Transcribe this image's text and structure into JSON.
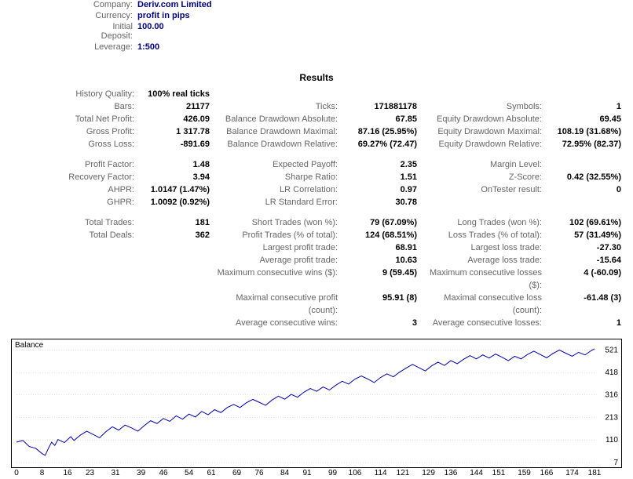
{
  "top": [
    {
      "label": "Company:",
      "value": "Deriv.com Limited"
    },
    {
      "label": "Currency:",
      "value": "profit in pips"
    },
    {
      "label": "Initial Deposit:",
      "value": "100.00"
    },
    {
      "label": "Leverage:",
      "value": "1:500"
    }
  ],
  "results_title": "Results",
  "stats_groups": [
    [
      {
        "a": [
          "History Quality:",
          "100% real ticks"
        ],
        "b": [
          "",
          ""
        ],
        "c": [
          "",
          ""
        ]
      },
      {
        "a": [
          "Bars:",
          "21177"
        ],
        "b": [
          "Ticks:",
          "171881178"
        ],
        "c": [
          "Symbols:",
          "1"
        ]
      },
      {
        "a": [
          "Total Net Profit:",
          "426.09"
        ],
        "b": [
          "Balance Drawdown Absolute:",
          "67.85"
        ],
        "c": [
          "Equity Drawdown Absolute:",
          "69.45"
        ]
      },
      {
        "a": [
          "Gross Profit:",
          "1 317.78"
        ],
        "b": [
          "Balance Drawdown Maximal:",
          "87.16 (25.95%)"
        ],
        "c": [
          "Equity Drawdown Maximal:",
          "108.19 (31.68%)"
        ]
      },
      {
        "a": [
          "Gross Loss:",
          "-891.69"
        ],
        "b": [
          "Balance Drawdown Relative:",
          "69.27% (72.47)"
        ],
        "c": [
          "Equity Drawdown Relative:",
          "72.95% (82.37)"
        ]
      }
    ],
    [
      {
        "a": [
          "Profit Factor:",
          "1.48"
        ],
        "b": [
          "Expected Payoff:",
          "2.35"
        ],
        "c": [
          "Margin Level:",
          ""
        ]
      },
      {
        "a": [
          "Recovery Factor:",
          "3.94"
        ],
        "b": [
          "Sharpe Ratio:",
          "1.51"
        ],
        "c": [
          "Z-Score:",
          "0.42 (32.55%)"
        ]
      },
      {
        "a": [
          "AHPR:",
          "1.0147 (1.47%)"
        ],
        "b": [
          "LR Correlation:",
          "0.97"
        ],
        "c": [
          "OnTester result:",
          "0"
        ]
      },
      {
        "a": [
          "GHPR:",
          "1.0092 (0.92%)"
        ],
        "b": [
          "LR Standard Error:",
          "30.78"
        ],
        "c": [
          "",
          ""
        ]
      }
    ],
    [
      {
        "a": [
          "Total Trades:",
          "181"
        ],
        "b": [
          "Short Trades (won %):",
          "79 (67.09%)"
        ],
        "c": [
          "Long Trades (won %):",
          "102 (69.61%)"
        ]
      },
      {
        "a": [
          "Total Deals:",
          "362"
        ],
        "b": [
          "Profit Trades (% of total):",
          "124 (68.51%)"
        ],
        "c": [
          "Loss Trades (% of total):",
          "57 (31.49%)"
        ]
      },
      {
        "a": [
          "",
          ""
        ],
        "b": [
          "Largest profit trade:",
          "68.91"
        ],
        "c": [
          "Largest loss trade:",
          "-27.30"
        ]
      },
      {
        "a": [
          "",
          ""
        ],
        "b": [
          "Average profit trade:",
          "10.63"
        ],
        "c": [
          "Average loss trade:",
          "-15.64"
        ]
      },
      {
        "a": [
          "",
          ""
        ],
        "b": [
          "Maximum consecutive wins ($):",
          "9 (59.45)"
        ],
        "c": [
          "Maximum consecutive losses ($):",
          "4 (-60.09)"
        ]
      },
      {
        "a": [
          "",
          ""
        ],
        "b": [
          "Maximal consecutive profit (count):",
          "95.91 (8)"
        ],
        "c": [
          "Maximal consecutive loss (count):",
          "-61.48 (3)"
        ]
      },
      {
        "a": [
          "",
          ""
        ],
        "b": [
          "Average consecutive wins:",
          "3"
        ],
        "c": [
          "Average consecutive losses:",
          "1"
        ]
      }
    ]
  ],
  "chart": {
    "label": "Balance",
    "width_inner": 744,
    "height_inner": 150,
    "y_tick_values": [
      7,
      110,
      213,
      316,
      418,
      521
    ],
    "y_min": 7,
    "y_max": 540,
    "x_min": 0,
    "x_max": 181,
    "x_ticks": [
      0,
      8,
      16,
      23,
      31,
      39,
      46,
      54,
      61,
      69,
      76,
      84,
      91,
      99,
      106,
      114,
      121,
      129,
      136,
      144,
      151,
      159,
      166,
      174,
      181
    ],
    "line_color": "#0000b0",
    "grid_color": "#c0c0c0",
    "series": [
      [
        0,
        100
      ],
      [
        2,
        108
      ],
      [
        4,
        80
      ],
      [
        6,
        72
      ],
      [
        7,
        60
      ],
      [
        8,
        48
      ],
      [
        9,
        40
      ],
      [
        10,
        72
      ],
      [
        11,
        100
      ],
      [
        12,
        85
      ],
      [
        13,
        112
      ],
      [
        15,
        98
      ],
      [
        17,
        125
      ],
      [
        18,
        108
      ],
      [
        20,
        132
      ],
      [
        22,
        150
      ],
      [
        24,
        135
      ],
      [
        26,
        120
      ],
      [
        28,
        148
      ],
      [
        30,
        170
      ],
      [
        32,
        155
      ],
      [
        34,
        178
      ],
      [
        36,
        165
      ],
      [
        38,
        150
      ],
      [
        40,
        175
      ],
      [
        42,
        198
      ],
      [
        44,
        185
      ],
      [
        46,
        208
      ],
      [
        48,
        195
      ],
      [
        50,
        220
      ],
      [
        52,
        205
      ],
      [
        54,
        228
      ],
      [
        56,
        215
      ],
      [
        58,
        240
      ],
      [
        60,
        225
      ],
      [
        62,
        248
      ],
      [
        64,
        235
      ],
      [
        66,
        258
      ],
      [
        68,
        272
      ],
      [
        70,
        258
      ],
      [
        72,
        280
      ],
      [
        74,
        295
      ],
      [
        76,
        282
      ],
      [
        78,
        268
      ],
      [
        80,
        292
      ],
      [
        82,
        310
      ],
      [
        84,
        296
      ],
      [
        86,
        318
      ],
      [
        88,
        305
      ],
      [
        90,
        328
      ],
      [
        92,
        345
      ],
      [
        94,
        332
      ],
      [
        96,
        352
      ],
      [
        98,
        338
      ],
      [
        100,
        360
      ],
      [
        102,
        378
      ],
      [
        104,
        365
      ],
      [
        106,
        388
      ],
      [
        108,
        402
      ],
      [
        110,
        388
      ],
      [
        112,
        372
      ],
      [
        114,
        395
      ],
      [
        116,
        412
      ],
      [
        118,
        398
      ],
      [
        120,
        420
      ],
      [
        122,
        438
      ],
      [
        124,
        455
      ],
      [
        126,
        440
      ],
      [
        128,
        425
      ],
      [
        130,
        448
      ],
      [
        132,
        465
      ],
      [
        134,
        450
      ],
      [
        136,
        472
      ],
      [
        138,
        458
      ],
      [
        140,
        478
      ],
      [
        142,
        495
      ],
      [
        144,
        480
      ],
      [
        146,
        498
      ],
      [
        148,
        484
      ],
      [
        150,
        502
      ],
      [
        152,
        488
      ],
      [
        154,
        472
      ],
      [
        156,
        492
      ],
      [
        158,
        480
      ],
      [
        160,
        500
      ],
      [
        162,
        515
      ],
      [
        164,
        500
      ],
      [
        166,
        485
      ],
      [
        168,
        505
      ],
      [
        170,
        520
      ],
      [
        172,
        506
      ],
      [
        174,
        492
      ],
      [
        176,
        510
      ],
      [
        178,
        498
      ],
      [
        180,
        518
      ],
      [
        181,
        526
      ]
    ]
  }
}
